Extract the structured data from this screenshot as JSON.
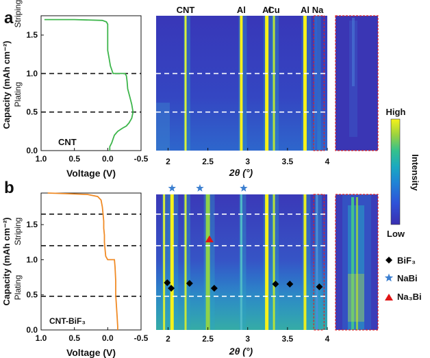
{
  "figure": {
    "panel_a_letter": "a",
    "panel_b_letter": "b",
    "colorbar": {
      "high": "High",
      "low": "Low",
      "title": "Intensity",
      "colors": [
        "#3a2fb0",
        "#2f52d8",
        "#1f84d6",
        "#1aa9c0",
        "#34c18c",
        "#9bd23f",
        "#f6f21a"
      ]
    },
    "legend": [
      {
        "symbol": "diamond",
        "color": "#000000",
        "label": "BiF₃"
      },
      {
        "symbol": "star",
        "color": "#3c7fd0",
        "label": "NaBi"
      },
      {
        "symbol": "triangle",
        "color": "#e01414",
        "label": "Na₃Bi"
      }
    ]
  },
  "chart_data": [
    {
      "type": "line",
      "panel": "a",
      "xlabel": "Voltage (V)",
      "ylabel": "Capacity (mAh cm⁻²)",
      "xlim": [
        1.0,
        -0.5
      ],
      "ylim": [
        0.0,
        1.75
      ],
      "xticks": [
        "1.0",
        "0.5",
        "0.0",
        "-0.5"
      ],
      "yticks": [
        "0.0",
        "0.5",
        "1.0",
        "1.5"
      ],
      "sample_label": "CNT",
      "region_labels": [
        "Striping",
        "Plating"
      ],
      "dashed_levels": [
        0.5,
        1.0
      ],
      "series": [
        {
          "color": "#3cb54a",
          "x": [
            -0.03,
            -0.03,
            -0.06,
            -0.08,
            -0.1,
            -0.15,
            -0.22,
            -0.28,
            -0.32,
            -0.36,
            -0.38,
            -0.36,
            -0.33,
            -0.3,
            -0.29,
            -0.28,
            -0.26,
            -0.18,
            -0.08,
            -0.04,
            -0.02,
            0.0,
            0.0,
            0.0,
            0.0,
            0.0,
            0.0,
            0.02,
            0.08,
            0.5,
            0.8,
            0.95
          ],
          "y": [
            0.0,
            0.05,
            0.1,
            0.15,
            0.2,
            0.25,
            0.29,
            0.32,
            0.36,
            0.42,
            0.5,
            0.6,
            0.7,
            0.8,
            0.9,
            0.97,
            1.0,
            1.0,
            1.0,
            1.1,
            1.2,
            1.3,
            1.4,
            1.5,
            1.55,
            1.6,
            1.64,
            1.67,
            1.69,
            1.7,
            1.7,
            1.7
          ]
        }
      ]
    },
    {
      "type": "heatmap",
      "panel": "a",
      "xlabel": "2θ (°)",
      "xlim": [
        1.85,
        4.0
      ],
      "xticks": [
        "2",
        "2.5",
        "3",
        "3.5",
        "4"
      ],
      "peak_labels": [
        {
          "label": "CNT",
          "x": 2.22
        },
        {
          "label": "Al",
          "x": 2.92
        },
        {
          "label": "Al",
          "x": 3.24
        },
        {
          "label": "Cu",
          "x": 3.33
        },
        {
          "label": "Al",
          "x": 3.72
        },
        {
          "label": "Na",
          "x": 3.88
        }
      ]
    },
    {
      "type": "line",
      "panel": "b",
      "xlabel": "Voltage (V)",
      "ylabel": "Capacity (mAh cm⁻²)",
      "xlim": [
        1.0,
        -0.5
      ],
      "ylim": [
        0.0,
        1.95
      ],
      "xticks": [
        "1.0",
        "0.5",
        "0.0",
        "-0.5"
      ],
      "yticks": [
        "0.0",
        "0.5",
        "1.0",
        "1.5"
      ],
      "sample_label": "CNT-BiF₃",
      "region_labels": [
        "Striping",
        "Plating"
      ],
      "dashed_levels": [
        0.48,
        1.2,
        1.65
      ],
      "series": [
        {
          "color": "#f08a24",
          "x": [
            -0.15,
            -0.15,
            -0.14,
            -0.13,
            -0.12,
            -0.12,
            -0.11,
            -0.1,
            -0.08,
            -0.05,
            0.0,
            0.03,
            0.04,
            0.05,
            0.05,
            0.06,
            0.06,
            0.07,
            0.08,
            0.1,
            0.15,
            0.3,
            0.6,
            0.9
          ],
          "y": [
            0.0,
            0.05,
            0.2,
            0.35,
            0.5,
            0.7,
            0.9,
            1.0,
            1.0,
            1.0,
            1.0,
            1.05,
            1.15,
            1.25,
            1.35,
            1.45,
            1.55,
            1.65,
            1.75,
            1.85,
            1.9,
            1.93,
            1.94,
            1.95
          ]
        }
      ]
    },
    {
      "type": "heatmap",
      "panel": "b",
      "xlabel": "2θ (°)",
      "xlim": [
        1.85,
        4.0
      ],
      "xticks": [
        "2",
        "2.5",
        "3",
        "3.5",
        "4"
      ],
      "markers_nabi": [
        2.05,
        2.4,
        2.95
      ],
      "markers_na3bi": [
        {
          "x": 2.52,
          "y": 1.3
        }
      ],
      "markers_bif3": [
        {
          "x": 1.99,
          "y": 0.68
        },
        {
          "x": 2.04,
          "y": 0.6
        },
        {
          "x": 2.27,
          "y": 0.67
        },
        {
          "x": 2.58,
          "y": 0.6
        },
        {
          "x": 3.35,
          "y": 0.66
        },
        {
          "x": 3.53,
          "y": 0.66
        },
        {
          "x": 3.9,
          "y": 0.62
        }
      ]
    }
  ]
}
